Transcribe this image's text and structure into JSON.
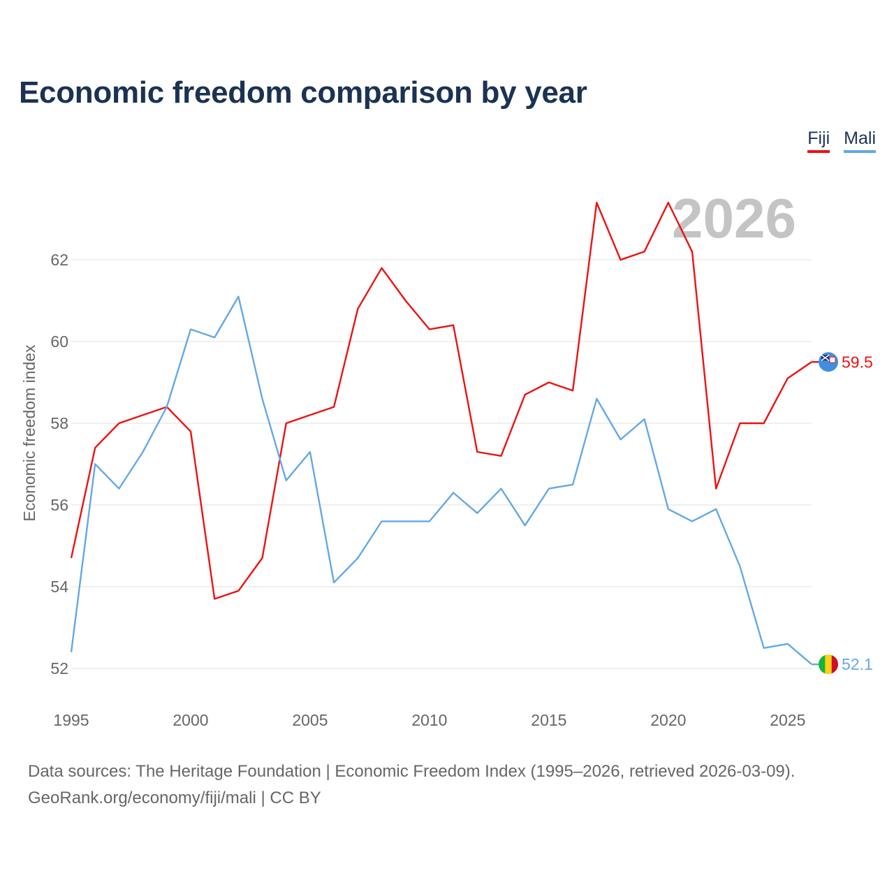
{
  "title": "Economic freedom comparison by year",
  "legend": [
    {
      "name": "Fiji",
      "color": "#ee1111"
    },
    {
      "name": "Mali",
      "color": "#64a8e6"
    }
  ],
  "current_year_label": "2026",
  "chart_data": {
    "type": "line",
    "title": "Economic freedom comparison by year",
    "xlabel": "",
    "ylabel": "Economic freedom index",
    "x": [
      1995,
      1996,
      1997,
      1998,
      1999,
      2000,
      2001,
      2002,
      2003,
      2004,
      2005,
      2006,
      2007,
      2008,
      2009,
      2010,
      2011,
      2012,
      2013,
      2014,
      2015,
      2016,
      2017,
      2018,
      2019,
      2020,
      2021,
      2022,
      2023,
      2024,
      2025,
      2026
    ],
    "xticks": [
      "1995",
      "2000",
      "2005",
      "2010",
      "2015",
      "2020",
      "2025"
    ],
    "xtick_values": [
      1995,
      2000,
      2005,
      2010,
      2015,
      2020,
      2025
    ],
    "yticks": [
      "52",
      "54",
      "56",
      "58",
      "60",
      "62"
    ],
    "ytick_values": [
      52,
      54,
      56,
      58,
      60,
      62
    ],
    "xlim": [
      1995,
      2026
    ],
    "ylim": [
      51.5,
      64
    ],
    "grid": true,
    "series": [
      {
        "name": "Fiji",
        "color": "#ee1111",
        "values": [
          54.7,
          57.4,
          58.0,
          58.2,
          58.4,
          57.8,
          53.7,
          53.9,
          54.7,
          58.0,
          58.2,
          58.4,
          60.8,
          61.8,
          61.0,
          60.3,
          60.4,
          57.3,
          57.2,
          58.7,
          59.0,
          58.8,
          63.4,
          62.0,
          62.2,
          63.4,
          62.2,
          56.4,
          58.0,
          58.0,
          59.1,
          59.5
        ],
        "end_label": "59.5"
      },
      {
        "name": "Mali",
        "color": "#64a8e6",
        "values": [
          52.4,
          57.0,
          56.4,
          57.3,
          58.4,
          60.3,
          60.1,
          61.1,
          58.6,
          56.6,
          57.3,
          54.1,
          54.7,
          55.6,
          55.6,
          55.6,
          56.3,
          55.8,
          56.4,
          55.5,
          56.4,
          56.5,
          58.6,
          57.6,
          58.1,
          55.9,
          55.6,
          55.9,
          54.5,
          52.5,
          52.6,
          52.1
        ],
        "end_label": "52.1"
      }
    ]
  },
  "footer": {
    "line1": "Data sources: The Heritage Foundation | Economic Freedom Index (1995–2026, retrieved 2026-03-09).",
    "line2": "GeoRank.org/economy/fiji/mali | CC BY"
  }
}
